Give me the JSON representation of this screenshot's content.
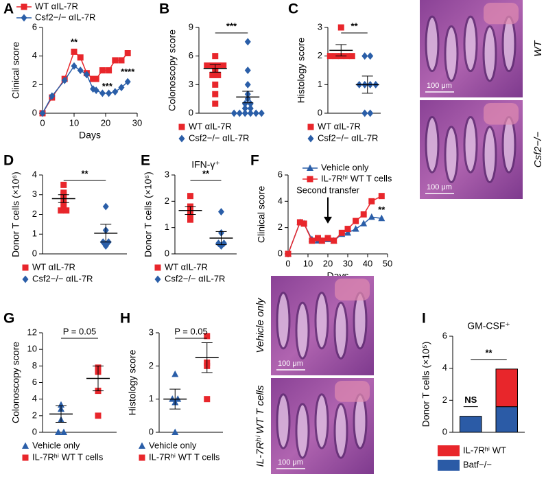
{
  "chart_data": [
    {
      "type": "line",
      "panel": "A",
      "xlabel": "Days",
      "ylabel": "Clinical score",
      "xlim": [
        0,
        30
      ],
      "xticks": [
        0,
        10,
        20,
        30
      ],
      "ylim": [
        0,
        6
      ],
      "yticks": [
        0,
        2,
        4,
        6
      ],
      "x": [
        0,
        3,
        7,
        10,
        12,
        14,
        16,
        17,
        19,
        21,
        23,
        25,
        27
      ],
      "series": [
        {
          "name": "WT αIL-7R",
          "color": "#e8262b",
          "marker": "square",
          "values": [
            0,
            1.1,
            2.4,
            4.3,
            3.9,
            2.8,
            2.4,
            2.4,
            3.0,
            3.0,
            3.7,
            3.7,
            4.2
          ]
        },
        {
          "name": "Csf2−/− αIL-7R",
          "color": "#2a5ea8",
          "marker": "diamond",
          "values": [
            0,
            1.2,
            2.3,
            3.3,
            3.0,
            2.7,
            1.7,
            1.6,
            1.4,
            1.4,
            1.5,
            1.8,
            2.2
          ]
        }
      ],
      "annotations": [
        "**",
        "***",
        "****"
      ]
    },
    {
      "type": "strip",
      "panel": "B",
      "ylabel": "Colonoscopy score",
      "ylim": [
        0,
        9
      ],
      "yticks": [
        0,
        3,
        6,
        9
      ],
      "significance": "***",
      "groups": [
        {
          "name": "WT αIL-7R",
          "color": "#e8262b",
          "marker": "square",
          "values": [
            6,
            5,
            5,
            5,
            5,
            4.8,
            4.5,
            4,
            4,
            3,
            2,
            1
          ],
          "mean": 4.7,
          "sem": 0.4
        },
        {
          "name": "Csf2−/− αIL-7R",
          "color": "#2a5ea8",
          "marker": "diamond",
          "values": [
            7.5,
            4.5,
            3,
            2,
            1.5,
            1,
            1,
            0.5,
            0.5,
            0,
            0,
            0,
            0,
            0,
            0
          ],
          "mean": 1.7,
          "sem": 0.6
        }
      ]
    },
    {
      "type": "strip",
      "panel": "C",
      "ylabel": "Histology score",
      "ylim": [
        0,
        3
      ],
      "yticks": [
        0,
        1,
        2,
        3
      ],
      "significance": "**",
      "groups": [
        {
          "name": "WT αIL-7R",
          "color": "#e8262b",
          "marker": "square",
          "values": [
            3,
            2,
            2,
            2,
            2,
            2
          ],
          "mean": 2.2,
          "sem": 0.2
        },
        {
          "name": "Csf2−/− αIL-7R",
          "color": "#2a5ea8",
          "marker": "diamond",
          "values": [
            2,
            2,
            1,
            1,
            1,
            1,
            0,
            0
          ],
          "mean": 1.0,
          "sem": 0.3
        }
      ]
    },
    {
      "type": "strip",
      "panel": "D",
      "ylabel": "Donor T cells (×10⁶)",
      "ylim": [
        0,
        4
      ],
      "yticks": [
        0,
        1,
        2,
        3,
        4
      ],
      "significance": "**",
      "groups": [
        {
          "name": "WT αIL-7R",
          "color": "#e8262b",
          "marker": "square",
          "values": [
            3.5,
            3.1,
            3.0,
            2.8,
            2.5,
            2.2,
            2.2
          ],
          "mean": 2.8,
          "sem": 0.2
        },
        {
          "name": "Csf2−/− αIL-7R",
          "color": "#2a5ea8",
          "marker": "diamond",
          "values": [
            2.4,
            1.2,
            0.6,
            0.4,
            0.6
          ],
          "mean": 1.05,
          "sem": 0.45
        }
      ]
    },
    {
      "type": "strip",
      "panel": "E",
      "title": "IFN-γ⁺",
      "ylabel": "Donor T cells (×10⁶)",
      "ylim": [
        0,
        3
      ],
      "yticks": [
        0,
        1,
        2,
        3
      ],
      "significance": "**",
      "groups": [
        {
          "name": "WT αIL-7R",
          "color": "#e8262b",
          "marker": "square",
          "values": [
            2.2,
            1.8,
            1.7,
            1.6,
            1.4,
            1.3
          ],
          "mean": 1.65,
          "sem": 0.15
        },
        {
          "name": "Csf2−/− αIL-7R",
          "color": "#2a5ea8",
          "marker": "diamond",
          "values": [
            1.6,
            0.8,
            0.4,
            0.4,
            0.3
          ],
          "mean": 0.6,
          "sem": 0.25
        }
      ]
    },
    {
      "type": "line",
      "panel": "F",
      "xlabel": "Days",
      "ylabel": "Clinical score",
      "xlim": [
        0,
        50
      ],
      "xticks": [
        0,
        10,
        20,
        30,
        40,
        50
      ],
      "ylim": [
        0,
        6
      ],
      "yticks": [
        0,
        2,
        4,
        6
      ],
      "x": [
        0,
        6,
        8,
        12,
        15,
        17,
        20,
        23,
        27,
        30,
        34,
        38,
        42,
        47
      ],
      "series": [
        {
          "name": "Vehicle only",
          "color": "#2a5ea8",
          "marker": "triangle",
          "values": [
            0,
            2.4,
            2.3,
            1.1,
            1.0,
            1.0,
            1.1,
            1.0,
            1.5,
            1.6,
            1.9,
            2.3,
            2.8,
            2.7
          ]
        },
        {
          "name": "IL-7Rʰⁱ WT T cells",
          "color": "#e8262b",
          "marker": "square",
          "values": [
            0,
            2.4,
            2.3,
            1.0,
            1.2,
            1.0,
            1.2,
            1.0,
            1.6,
            1.9,
            2.5,
            3.0,
            4.0,
            4.4
          ]
        }
      ],
      "annotations": [
        "Second transfer",
        "**"
      ]
    },
    {
      "type": "strip",
      "panel": "G",
      "ylabel": "Colonoscopy score",
      "ylim": [
        0,
        12
      ],
      "yticks": [
        0,
        2,
        4,
        6,
        8,
        10,
        12
      ],
      "significance": "P = 0.05",
      "groups": [
        {
          "name": "Vehicle only",
          "color": "#2a5ea8",
          "marker": "triangle",
          "values": [
            3.3,
            2.8,
            1.5,
            0,
            0
          ],
          "mean": 2.2,
          "sem": 1.0
        },
        {
          "name": "IL-7Rʰⁱ WT T cells",
          "color": "#e8262b",
          "marker": "square",
          "values": [
            7.8,
            7.3,
            5,
            2
          ],
          "mean": 6.5,
          "sem": 1.5
        }
      ]
    },
    {
      "type": "strip",
      "panel": "H",
      "ylabel": "Histology score",
      "ylim": [
        0,
        3
      ],
      "yticks": [
        0,
        1,
        2,
        3
      ],
      "significance": "P = 0.05",
      "groups": [
        {
          "name": "Vehicle only",
          "color": "#2a5ea8",
          "marker": "triangle",
          "values": [
            1.75,
            1.0,
            1.0,
            0.9,
            0
          ],
          "mean": 1.0,
          "sem": 0.3
        },
        {
          "name": "IL-7Rʰⁱ WT T cells",
          "color": "#e8262b",
          "marker": "square",
          "values": [
            2.9,
            2.1,
            2.0,
            1.0
          ],
          "mean": 2.25,
          "sem": 0.45
        }
      ]
    },
    {
      "type": "stacked_bar",
      "panel": "I",
      "title": "GM-CSF⁺",
      "ylabel": "Donor T cells (×10⁵)",
      "ylim": [
        0,
        6
      ],
      "yticks": [
        0,
        2,
        4,
        6
      ],
      "categories": [
        null,
        null
      ],
      "series": [
        {
          "name": "IL-7Rʰⁱ WT",
          "color": "#e8262b",
          "values": [
            0,
            2.35
          ]
        },
        {
          "name": "Batf−/−",
          "color": "#2b5ba6",
          "values": [
            1.0,
            1.6
          ]
        }
      ],
      "annotations": [
        "NS",
        "**"
      ]
    }
  ],
  "images": [
    {
      "label": "WT",
      "scale": "100 μm"
    },
    {
      "label": "Csf2−/−",
      "scale": "100 μm"
    },
    {
      "label": "Vehicle only",
      "scale": "100 μm"
    },
    {
      "label": "IL-7Rʰⁱ WT T cells",
      "scale": "100 μm"
    }
  ]
}
